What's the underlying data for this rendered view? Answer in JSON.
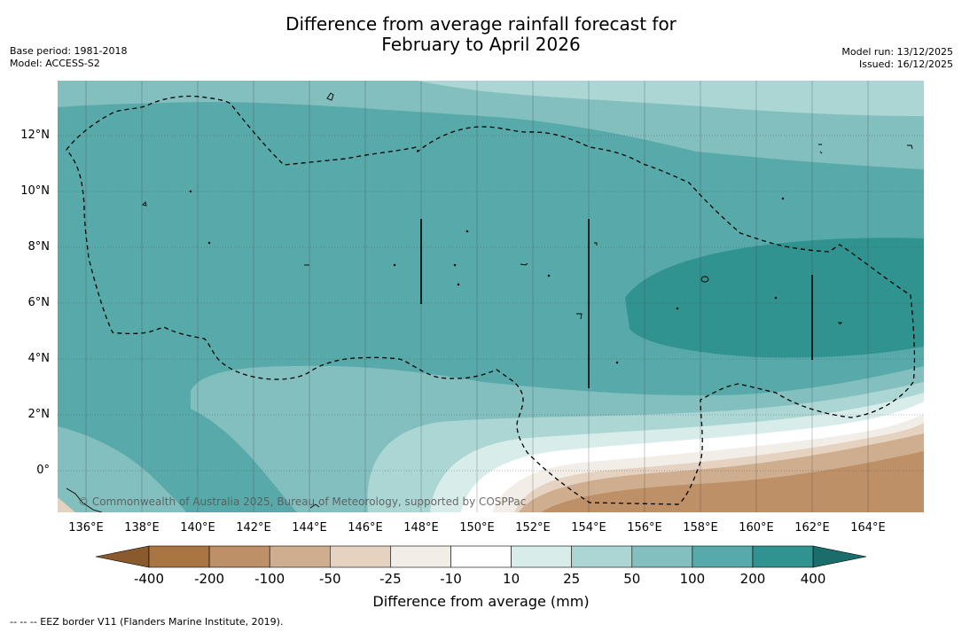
{
  "header": {
    "title_line1": "Difference from average rainfall forecast for",
    "title_line2": "February to April 2026",
    "base_period": "Base period: 1981-2018",
    "model": "Model: ACCESS-S2",
    "model_run": "Model run: 13/12/2025",
    "issued": "Issued: 16/12/2025"
  },
  "map": {
    "x_ticks": [
      "136°E",
      "138°E",
      "140°E",
      "142°E",
      "144°E",
      "146°E",
      "148°E",
      "150°E",
      "152°E",
      "154°E",
      "156°E",
      "158°E",
      "160°E",
      "162°E",
      "164°E"
    ],
    "y_ticks": [
      "12°N",
      "10°N",
      "8°N",
      "6°N",
      "4°N",
      "2°N",
      "0°"
    ],
    "copyright": "© Commonwealth of Australia 2025, Bureau of Meteorology, supported by COSPPac"
  },
  "legend": {
    "labels": [
      "-400",
      "-200",
      "-100",
      "-50",
      "-25",
      "-10",
      "10",
      "25",
      "50",
      "100",
      "200",
      "400"
    ],
    "colors": [
      "#8a5a2e",
      "#a97542",
      "#bd9068",
      "#cfae8f",
      "#e5d2c1",
      "#f2ede7",
      "#ffffff",
      "#d8ece9",
      "#abd6d3",
      "#82bfbe",
      "#58aaaa",
      "#31938f",
      "#1a6d6a"
    ],
    "title": "Difference from average (mm)"
  },
  "footnote": "--  --  -- EEZ border V11 (Flanders Marine Institute, 2019)."
}
